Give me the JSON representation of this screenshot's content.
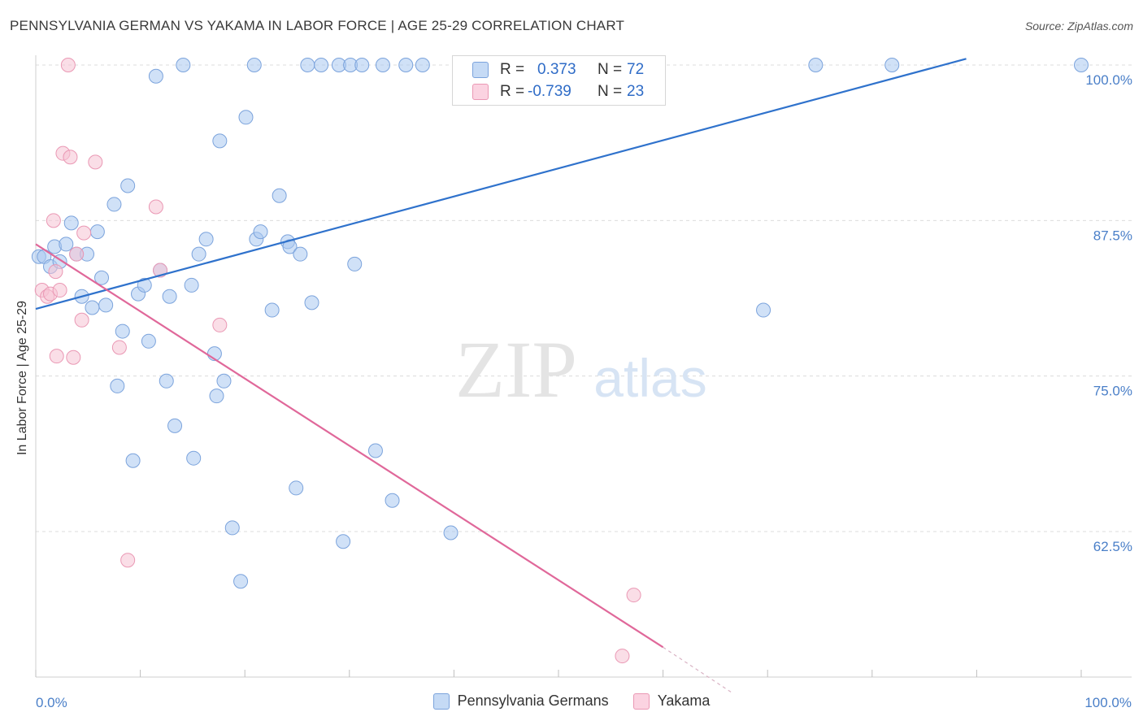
{
  "title": "PENNSYLVANIA GERMAN VS YAKAMA IN LABOR FORCE | AGE 25-29 CORRELATION CHART",
  "source": "Source: ZipAtlas.com",
  "watermark": {
    "zip": "ZIP",
    "atlas": "atlas"
  },
  "legend": {
    "r_label": "R =",
    "n_label": "N =",
    "rows": [
      {
        "r": "0.373",
        "n": "72"
      },
      {
        "r": "-0.739",
        "n": "23"
      }
    ]
  },
  "chart_data": {
    "type": "scatter",
    "title": "PENNSYLVANIA GERMAN VS YAKAMA IN LABOR FORCE | AGE 25-29 CORRELATION CHART",
    "xlabel": "",
    "ylabel": "In Labor Force | Age 25-29",
    "xlim": [
      0,
      100
    ],
    "ylim": [
      50,
      101
    ],
    "x_tick_labels": [
      "0.0%",
      "100.0%"
    ],
    "y_ticks": [
      62.5,
      75.0,
      87.5,
      100.0
    ],
    "y_tick_labels": [
      "62.5%",
      "75.0%",
      "87.5%",
      "100.0%"
    ],
    "grid": true,
    "legend_position": "top-center",
    "series": [
      {
        "name": "Pennsylvania Germans",
        "color": "#a9c8f0",
        "edge": "#7ba3dc",
        "line_color": "#2f72cc",
        "r": 0.373,
        "n": 72,
        "trend": {
          "x": [
            0,
            89
          ],
          "y": [
            80.4,
            100.5
          ]
        },
        "points": [
          [
            0.3,
            84.6
          ],
          [
            0.8,
            84.6
          ],
          [
            1.4,
            83.8
          ],
          [
            1.8,
            85.4
          ],
          [
            2.3,
            84.2
          ],
          [
            2.9,
            85.6
          ],
          [
            3.4,
            87.3
          ],
          [
            3.9,
            84.8
          ],
          [
            4.4,
            81.4
          ],
          [
            4.9,
            84.8
          ],
          [
            5.4,
            80.5
          ],
          [
            5.9,
            86.6
          ],
          [
            6.3,
            82.9
          ],
          [
            6.7,
            80.7
          ],
          [
            7.5,
            88.8
          ],
          [
            7.8,
            74.2
          ],
          [
            8.3,
            78.6
          ],
          [
            8.8,
            90.3
          ],
          [
            9.3,
            68.2
          ],
          [
            9.8,
            81.6
          ],
          [
            10.4,
            82.3
          ],
          [
            10.8,
            77.8
          ],
          [
            11.5,
            99.1
          ],
          [
            11.9,
            83.5
          ],
          [
            12.5,
            74.6
          ],
          [
            12.8,
            81.4
          ],
          [
            13.3,
            71.0
          ],
          [
            14.1,
            100.0
          ],
          [
            14.9,
            82.3
          ],
          [
            15.1,
            68.4
          ],
          [
            15.6,
            84.8
          ],
          [
            16.3,
            86.0
          ],
          [
            17.1,
            76.8
          ],
          [
            17.3,
            73.4
          ],
          [
            17.6,
            93.9
          ],
          [
            18.0,
            74.6
          ],
          [
            18.8,
            62.8
          ],
          [
            19.6,
            58.5
          ],
          [
            20.1,
            95.8
          ],
          [
            20.9,
            100.0
          ],
          [
            21.1,
            86.0
          ],
          [
            21.5,
            86.6
          ],
          [
            22.6,
            80.3
          ],
          [
            23.3,
            89.5
          ],
          [
            24.1,
            85.8
          ],
          [
            24.3,
            85.4
          ],
          [
            24.9,
            66.0
          ],
          [
            25.3,
            84.8
          ],
          [
            26.0,
            100.0
          ],
          [
            26.4,
            80.9
          ],
          [
            27.3,
            100.0
          ],
          [
            29.0,
            100.0
          ],
          [
            29.4,
            61.7
          ],
          [
            30.1,
            100.0
          ],
          [
            30.5,
            84.0
          ],
          [
            31.2,
            100.0
          ],
          [
            32.5,
            69.0
          ],
          [
            33.2,
            100.0
          ],
          [
            34.1,
            65.0
          ],
          [
            35.4,
            100.0
          ],
          [
            37.0,
            100.0
          ],
          [
            39.7,
            62.4
          ],
          [
            42.0,
            100.0
          ],
          [
            46.0,
            100.0
          ],
          [
            48.9,
            100.0
          ],
          [
            55.7,
            100.0
          ],
          [
            69.6,
            80.3
          ],
          [
            74.6,
            100.0
          ],
          [
            81.9,
            100.0
          ],
          [
            100.0,
            100.0
          ]
        ]
      },
      {
        "name": "Yakama",
        "color": "#f6c2d4",
        "edge": "#ea98b4",
        "line_color": "#e0689a",
        "r": -0.739,
        "n": 23,
        "trend": {
          "x": [
            0,
            60
          ],
          "y": [
            85.6,
            53.2
          ]
        },
        "trend_dashed": {
          "x": [
            60,
            66.5
          ],
          "y": [
            53.2,
            49.6
          ]
        },
        "points": [
          [
            0.6,
            81.9
          ],
          [
            1.1,
            81.4
          ],
          [
            1.4,
            81.6
          ],
          [
            1.7,
            87.5
          ],
          [
            1.9,
            83.4
          ],
          [
            2.0,
            76.6
          ],
          [
            2.3,
            81.9
          ],
          [
            2.6,
            92.9
          ],
          [
            3.1,
            100.0
          ],
          [
            3.3,
            92.6
          ],
          [
            3.6,
            76.5
          ],
          [
            3.9,
            84.8
          ],
          [
            4.4,
            79.5
          ],
          [
            4.6,
            86.5
          ],
          [
            5.7,
            92.2
          ],
          [
            8.0,
            77.3
          ],
          [
            8.8,
            60.2
          ],
          [
            11.5,
            88.6
          ],
          [
            11.9,
            83.5
          ],
          [
            17.6,
            79.1
          ],
          [
            56.1,
            52.5
          ],
          [
            57.2,
            57.4
          ]
        ]
      }
    ]
  }
}
